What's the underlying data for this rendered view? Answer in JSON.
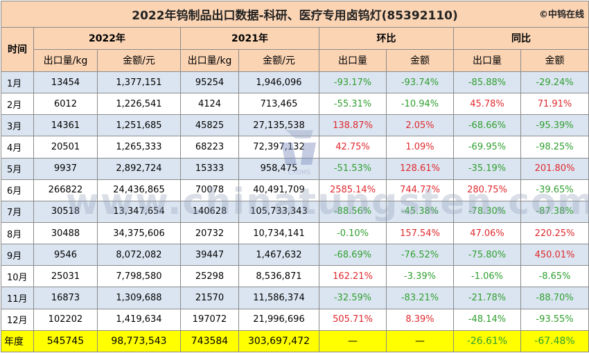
{
  "title": "2022年钨制品出口数据-科研、医疗专用卤钨灯(85392110)",
  "brand": "©中钨在线",
  "headers": {
    "time": "时间",
    "year2022": "2022年",
    "year2021": "2021年",
    "mom": "环比",
    "yoy": "同比",
    "qty_kg": "出口量/kg",
    "amount_yuan": "金额/元",
    "qty": "出口量",
    "amount": "金额"
  },
  "rows": [
    {
      "month": "1月",
      "q2022": "13454",
      "a2022": "1,377,151",
      "q2021": "95254",
      "a2021": "1,946,096",
      "mom_q": "-93.17%",
      "mom_a": "-93.74%",
      "yoy_q": "-85.88%",
      "yoy_a": "-29.24%"
    },
    {
      "month": "2月",
      "q2022": "6012",
      "a2022": "1,226,541",
      "q2021": "4124",
      "a2021": "713,465",
      "mom_q": "-55.31%",
      "mom_a": "-10.94%",
      "yoy_q": "45.78%",
      "yoy_a": "71.91%"
    },
    {
      "month": "3月",
      "q2022": "14361",
      "a2022": "1,251,685",
      "q2021": "45825",
      "a2021": "27,135,538",
      "mom_q": "138.87%",
      "mom_a": "2.05%",
      "yoy_q": "-68.66%",
      "yoy_a": "-95.39%"
    },
    {
      "month": "4月",
      "q2022": "20501",
      "a2022": "1,265,333",
      "q2021": "68223",
      "a2021": "72,397,132",
      "mom_q": "42.75%",
      "mom_a": "1.09%",
      "yoy_q": "-69.95%",
      "yoy_a": "-98.25%"
    },
    {
      "month": "5月",
      "q2022": "9937",
      "a2022": "2,892,724",
      "q2021": "15333",
      "a2021": "958,475",
      "mom_q": "-51.53%",
      "mom_a": "128.61%",
      "yoy_q": "-35.19%",
      "yoy_a": "201.80%"
    },
    {
      "month": "6月",
      "q2022": "266822",
      "a2022": "24,436,865",
      "q2021": "70078",
      "a2021": "40,491,709",
      "mom_q": "2585.14%",
      "mom_a": "744.77%",
      "yoy_q": "280.75%",
      "yoy_a": "-39.65%"
    },
    {
      "month": "7月",
      "q2022": "30518",
      "a2022": "13,347,654",
      "q2021": "140628",
      "a2021": "105,733,343",
      "mom_q": "-88.56%",
      "mom_a": "-45.38%",
      "yoy_q": "-78.30%",
      "yoy_a": "-87.38%"
    },
    {
      "month": "8月",
      "q2022": "30488",
      "a2022": "34,375,606",
      "q2021": "20732",
      "a2021": "10,734,141",
      "mom_q": "-0.10%",
      "mom_a": "157.54%",
      "yoy_q": "47.06%",
      "yoy_a": "220.25%"
    },
    {
      "month": "9月",
      "q2022": "9546",
      "a2022": "8,072,082",
      "q2021": "39447",
      "a2021": "1,467,632",
      "mom_q": "-68.69%",
      "mom_a": "-76.52%",
      "yoy_q": "-75.80%",
      "yoy_a": "450.01%"
    },
    {
      "month": "10月",
      "q2022": "25031",
      "a2022": "7,798,580",
      "q2021": "25298",
      "a2021": "8,536,871",
      "mom_q": "162.21%",
      "mom_a": "-3.39%",
      "yoy_q": "-1.06%",
      "yoy_a": "-8.65%"
    },
    {
      "month": "11月",
      "q2022": "16873",
      "a2022": "1,309,688",
      "q2021": "21570",
      "a2021": "11,586,374",
      "mom_q": "-32.59%",
      "mom_a": "-83.21%",
      "yoy_q": "-21.78%",
      "yoy_a": "-88.70%"
    },
    {
      "month": "12月",
      "q2022": "102202",
      "a2022": "1,419,634",
      "q2021": "197072",
      "a2021": "21,996,696",
      "mom_q": "505.71%",
      "mom_a": "8.39%",
      "yoy_q": "-48.14%",
      "yoy_a": "-93.55%"
    }
  ],
  "total": {
    "label": "年度",
    "q2022": "545745",
    "a2022": "98,773,543",
    "q2021": "743584",
    "a2021": "303,697,472",
    "mom_q": "—",
    "mom_a": "—",
    "yoy_q": "-26.61%",
    "yoy_a": "-67.48%"
  },
  "watermark": {
    "text": "www.chinatungsten.com",
    "logo_text": "CTOMS"
  },
  "colors": {
    "header_bg": "#fbd4b4",
    "row_stripe": "#dbe5f1",
    "total_bg": "#ffff00",
    "positive": "#e0282d",
    "negative": "#2f9e2f"
  }
}
